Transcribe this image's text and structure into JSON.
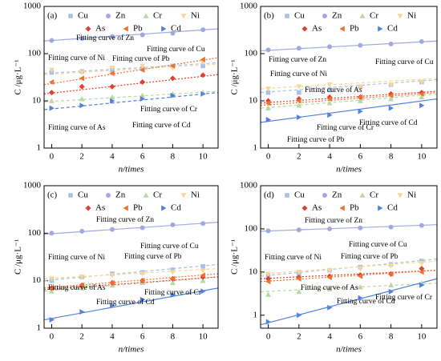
{
  "chart_data": [
    {
      "type": "scatter",
      "label": "(a)",
      "xlabel": "n/times",
      "ylabel": "C /μg·L⁻¹",
      "log_scale": true,
      "x": [
        0,
        2,
        4,
        6,
        8,
        10
      ],
      "xlim": [
        -0.5,
        11
      ],
      "ylim": [
        1,
        1000
      ],
      "xticks": [
        0,
        2,
        4,
        6,
        8,
        10
      ],
      "yticks": [
        1,
        10,
        100,
        1000
      ],
      "series": [
        {
          "name": "Cu",
          "color": "#a8c0e8",
          "marker": "square",
          "values": [
            40,
            42,
            45,
            48,
            55,
            55
          ],
          "fit": [
            38,
            64
          ],
          "fit_style": "dashed"
        },
        {
          "name": "Zn",
          "color": "#a0a8e0",
          "marker": "circle",
          "values": [
            190,
            210,
            230,
            250,
            270,
            320
          ],
          "fit": [
            185,
            335
          ],
          "fit_style": "solid"
        },
        {
          "name": "Cr",
          "color": "#b8d8a0",
          "marker": "triangle-up",
          "values": [
            10,
            11,
            12,
            13,
            14,
            15
          ],
          "fit": [
            9.5,
            16
          ],
          "fit_style": "dashed"
        },
        {
          "name": "Ni",
          "color": "#f8d890",
          "marker": "triangle-down",
          "values": [
            45,
            40,
            50,
            55,
            50,
            65
          ],
          "fit": [
            36,
            60
          ],
          "fit_style": "dashed"
        },
        {
          "name": "As",
          "color": "#e04030",
          "marker": "diamond",
          "values": [
            15,
            20,
            20,
            25,
            30,
            35
          ],
          "fit": [
            14,
            36
          ],
          "fit_style": "dotted"
        },
        {
          "name": "Pb",
          "color": "#f07030",
          "marker": "triangle-left",
          "values": [
            25,
            30,
            38,
            45,
            55,
            75
          ],
          "fit": [
            22,
            82
          ],
          "fit_style": "dotted"
        },
        {
          "name": "Cd",
          "color": "#5080e0",
          "marker": "triangle-right",
          "values": [
            7,
            8,
            10,
            11,
            13,
            14
          ],
          "fit": [
            6.5,
            15
          ],
          "fit_style": "dashed"
        }
      ],
      "annotations": [
        "Fitting curve of Zn",
        "Fitting curve of Ni",
        "Fitting curve of Cu",
        "Fitting curve of Pb",
        "Fitting curve of Cr",
        "Fitting curve of Cd",
        "Fitting curve of As"
      ]
    },
    {
      "type": "scatter",
      "label": "(b)",
      "xlabel": "n/times",
      "ylabel": "C /μg·L⁻¹",
      "log_scale": true,
      "x": [
        0,
        2,
        4,
        6,
        8,
        10
      ],
      "xlim": [
        -0.5,
        11
      ],
      "ylim": [
        1,
        1000
      ],
      "xticks": [
        0,
        2,
        4,
        6,
        8,
        10
      ],
      "yticks": [
        1,
        10,
        100,
        1000
      ],
      "series": [
        {
          "name": "Cu",
          "color": "#a8c0e8",
          "marker": "square",
          "values": [
            15,
            15,
            17,
            20,
            22,
            25
          ],
          "fit": [
            15,
            28
          ],
          "fit_style": "dashed"
        },
        {
          "name": "Zn",
          "color": "#a0a8e0",
          "marker": "circle",
          "values": [
            120,
            130,
            140,
            150,
            160,
            180
          ],
          "fit": [
            115,
            185
          ],
          "fit_style": "solid"
        },
        {
          "name": "Cr",
          "color": "#b8d8a0",
          "marker": "triangle-up",
          "values": [
            7,
            8,
            9,
            10,
            11,
            12
          ],
          "fit": [
            7,
            14
          ],
          "fit_style": "dashed"
        },
        {
          "name": "Ni",
          "color": "#f8d890",
          "marker": "triangle-down",
          "values": [
            18,
            20,
            22,
            20,
            22,
            25
          ],
          "fit": [
            18,
            30
          ],
          "fit_style": "dashed"
        },
        {
          "name": "As",
          "color": "#e04030",
          "marker": "diamond",
          "values": [
            10,
            11,
            12,
            12,
            14,
            15
          ],
          "fit": [
            9,
            16
          ],
          "fit_style": "dotted"
        },
        {
          "name": "Pb",
          "color": "#f07030",
          "marker": "triangle-left",
          "values": [
            9,
            10,
            11,
            12,
            13,
            14
          ],
          "fit": [
            8,
            15
          ],
          "fit_style": "dotted"
        },
        {
          "name": "Cd",
          "color": "#5080e0",
          "marker": "triangle-right",
          "values": [
            4,
            4.5,
            5,
            6,
            7,
            8
          ],
          "fit": [
            3.5,
            11
          ],
          "fit_style": "solid"
        }
      ],
      "annotations": [
        "Fitting curve of Zn",
        "Fitting curve of Ni",
        "Fitting curve of As",
        "Fitting curve of Cu",
        "Fitting curve of Cr",
        "Fitting curve of Cd",
        "Fitting curve of Pb"
      ]
    },
    {
      "type": "scatter",
      "label": "(c)",
      "xlabel": "n/times",
      "ylabel": "C /μg·L⁻¹",
      "log_scale": true,
      "x": [
        0,
        2,
        4,
        6,
        8,
        10
      ],
      "xlim": [
        -0.5,
        11
      ],
      "ylim": [
        1,
        1000
      ],
      "xticks": [
        0,
        2,
        4,
        6,
        8,
        10
      ],
      "yticks": [
        1,
        10,
        100,
        1000
      ],
      "series": [
        {
          "name": "Cu",
          "color": "#a8c0e8",
          "marker": "square",
          "values": [
            10,
            12,
            14,
            15,
            17,
            20
          ],
          "fit": [
            10,
            22
          ],
          "fit_style": "dashed"
        },
        {
          "name": "Zn",
          "color": "#a0a8e0",
          "marker": "circle",
          "values": [
            100,
            110,
            120,
            130,
            150,
            160
          ],
          "fit": [
            95,
            170
          ],
          "fit_style": "solid"
        },
        {
          "name": "Cr",
          "color": "#b8d8a0",
          "marker": "triangle-up",
          "values": [
            6,
            7,
            8,
            9,
            9,
            10
          ],
          "fit": [
            6,
            12
          ],
          "fit_style": "dashed"
        },
        {
          "name": "Ni",
          "color": "#f8d890",
          "marker": "triangle-down",
          "values": [
            11,
            12,
            13,
            14,
            15,
            16
          ],
          "fit": [
            11,
            18
          ],
          "fit_style": "dashed"
        },
        {
          "name": "As",
          "color": "#e04030",
          "marker": "diamond",
          "values": [
            7,
            8,
            9,
            10,
            11,
            12
          ],
          "fit": [
            6.5,
            12
          ],
          "fit_style": "dotted"
        },
        {
          "name": "Pb",
          "color": "#f07030",
          "marker": "triangle-left",
          "values": [
            7,
            8,
            9,
            10,
            11,
            13
          ],
          "fit": [
            7,
            14
          ],
          "fit_style": "dotted"
        },
        {
          "name": "Cd",
          "color": "#5080e0",
          "marker": "triangle-right",
          "values": [
            1.5,
            2.2,
            3,
            4,
            5,
            6
          ],
          "fit": [
            1.5,
            7
          ],
          "fit_style": "solid"
        }
      ],
      "annotations": [
        "Fitting curve of Zn",
        "Fitting curve of Ni",
        "Fitting curve of Cu",
        "Fitting curve of Pb",
        "Fitting curve of As",
        "Fitting curve of Cr",
        "Fitting curve of Cd"
      ]
    },
    {
      "type": "scatter",
      "label": "(d)",
      "xlabel": "n/times",
      "ylabel": "C /μg·L⁻¹",
      "log_scale": true,
      "x": [
        0,
        2,
        4,
        6,
        8,
        10
      ],
      "xlim": [
        -0.5,
        11
      ],
      "ylim": [
        0.5,
        1000
      ],
      "xticks": [
        0,
        2,
        4,
        6,
        8,
        10
      ],
      "yticks": [
        1,
        10,
        100,
        1000
      ],
      "series": [
        {
          "name": "Cu",
          "color": "#a8c0e8",
          "marker": "square",
          "values": [
            8,
            9,
            11,
            13,
            15,
            18
          ],
          "fit": [
            8,
            20
          ],
          "fit_style": "dashed"
        },
        {
          "name": "Zn",
          "color": "#a0a8e0",
          "marker": "circle",
          "values": [
            90,
            95,
            100,
            105,
            110,
            120
          ],
          "fit": [
            88,
            125
          ],
          "fit_style": "solid"
        },
        {
          "name": "Cr",
          "color": "#b8d8a0",
          "marker": "triangle-up",
          "values": [
            3,
            3.5,
            4,
            4.5,
            5,
            5.5
          ],
          "fit": [
            3.5,
            5.5
          ],
          "fit_style": "dashed"
        },
        {
          "name": "Ni",
          "color": "#f8d890",
          "marker": "triangle-down",
          "values": [
            9,
            10,
            11,
            12,
            14,
            16
          ],
          "fit": [
            9,
            18
          ],
          "fit_style": "dashed"
        },
        {
          "name": "As",
          "color": "#e04030",
          "marker": "diamond",
          "values": [
            7,
            7.5,
            8,
            8.5,
            9,
            12
          ],
          "fit": [
            7,
            11
          ],
          "fit_style": "dotted"
        },
        {
          "name": "Pb",
          "color": "#f07030",
          "marker": "triangle-left",
          "values": [
            6,
            7,
            7.5,
            8,
            9,
            10
          ],
          "fit": [
            6,
            11
          ],
          "fit_style": "dotted"
        },
        {
          "name": "Cd",
          "color": "#5080e0",
          "marker": "triangle-right",
          "values": [
            0.7,
            1,
            1.5,
            2.5,
            3.5,
            5
          ],
          "fit": [
            0.6,
            7
          ],
          "fit_style": "solid"
        }
      ],
      "annotations": [
        "Fitting curve of Zn",
        "Fitting curve of Ni",
        "Fitting curve of Cu",
        "Fitting curve of Pb",
        "Fitting curve of As",
        "Fitting curve of Cr",
        "Fitting curve of Cd"
      ]
    }
  ]
}
